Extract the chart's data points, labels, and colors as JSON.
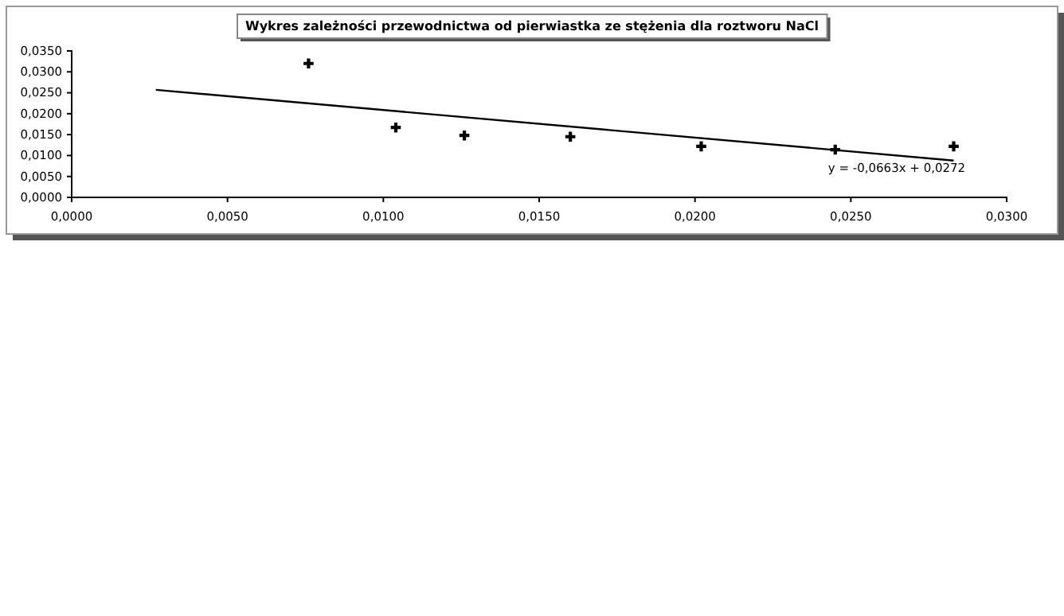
{
  "chart_data": {
    "type": "scatter",
    "title": "Wykres zależności przewodnictwa od pierwiastka ze stężenia dla roztworu NaCl",
    "series": [
      {
        "color": "#000000",
        "marker": "cross",
        "x": [
          0.0076,
          0.0104,
          0.0126,
          0.016,
          0.0202,
          0.0245,
          0.0283
        ],
        "values": [
          0.032,
          0.0167,
          0.0148,
          0.0145,
          0.0122,
          0.0114,
          0.0122
        ]
      },
      {
        "type": "line",
        "color": "#000000",
        "marker": "none",
        "x": [
          0.0027,
          0.0283
        ],
        "values": [
          0.0257,
          0.0088
        ]
      }
    ],
    "xlim": [
      0,
      0.03
    ],
    "xticks": [
      {
        "value": 0,
        "label": "0,0000"
      },
      {
        "value": 0.005,
        "label": "0,0050"
      },
      {
        "value": 0.01,
        "label": "0,0100"
      },
      {
        "value": 0.015,
        "label": "0,0150"
      },
      {
        "value": 0.02,
        "label": "0,0200"
      },
      {
        "value": 0.025,
        "label": "0,0250"
      },
      {
        "value": 0.03,
        "label": "0,0300"
      }
    ],
    "ylim": [
      0,
      0.035
    ],
    "yticks": [
      {
        "value": 0,
        "label": "0,0000"
      },
      {
        "value": 0.005,
        "label": "0,0050"
      },
      {
        "value": 0.01,
        "label": "0,0100"
      },
      {
        "value": 0.015,
        "label": "0,0150"
      },
      {
        "value": 0.02,
        "label": "0,0200"
      },
      {
        "value": 0.025,
        "label": "0,0250"
      },
      {
        "value": 0.03,
        "label": "0,0300"
      },
      {
        "value": 0.035,
        "label": "0,0350"
      }
    ],
    "annotations": [
      "y = -0,0663x + 0,0272"
    ],
    "grid": false
  }
}
